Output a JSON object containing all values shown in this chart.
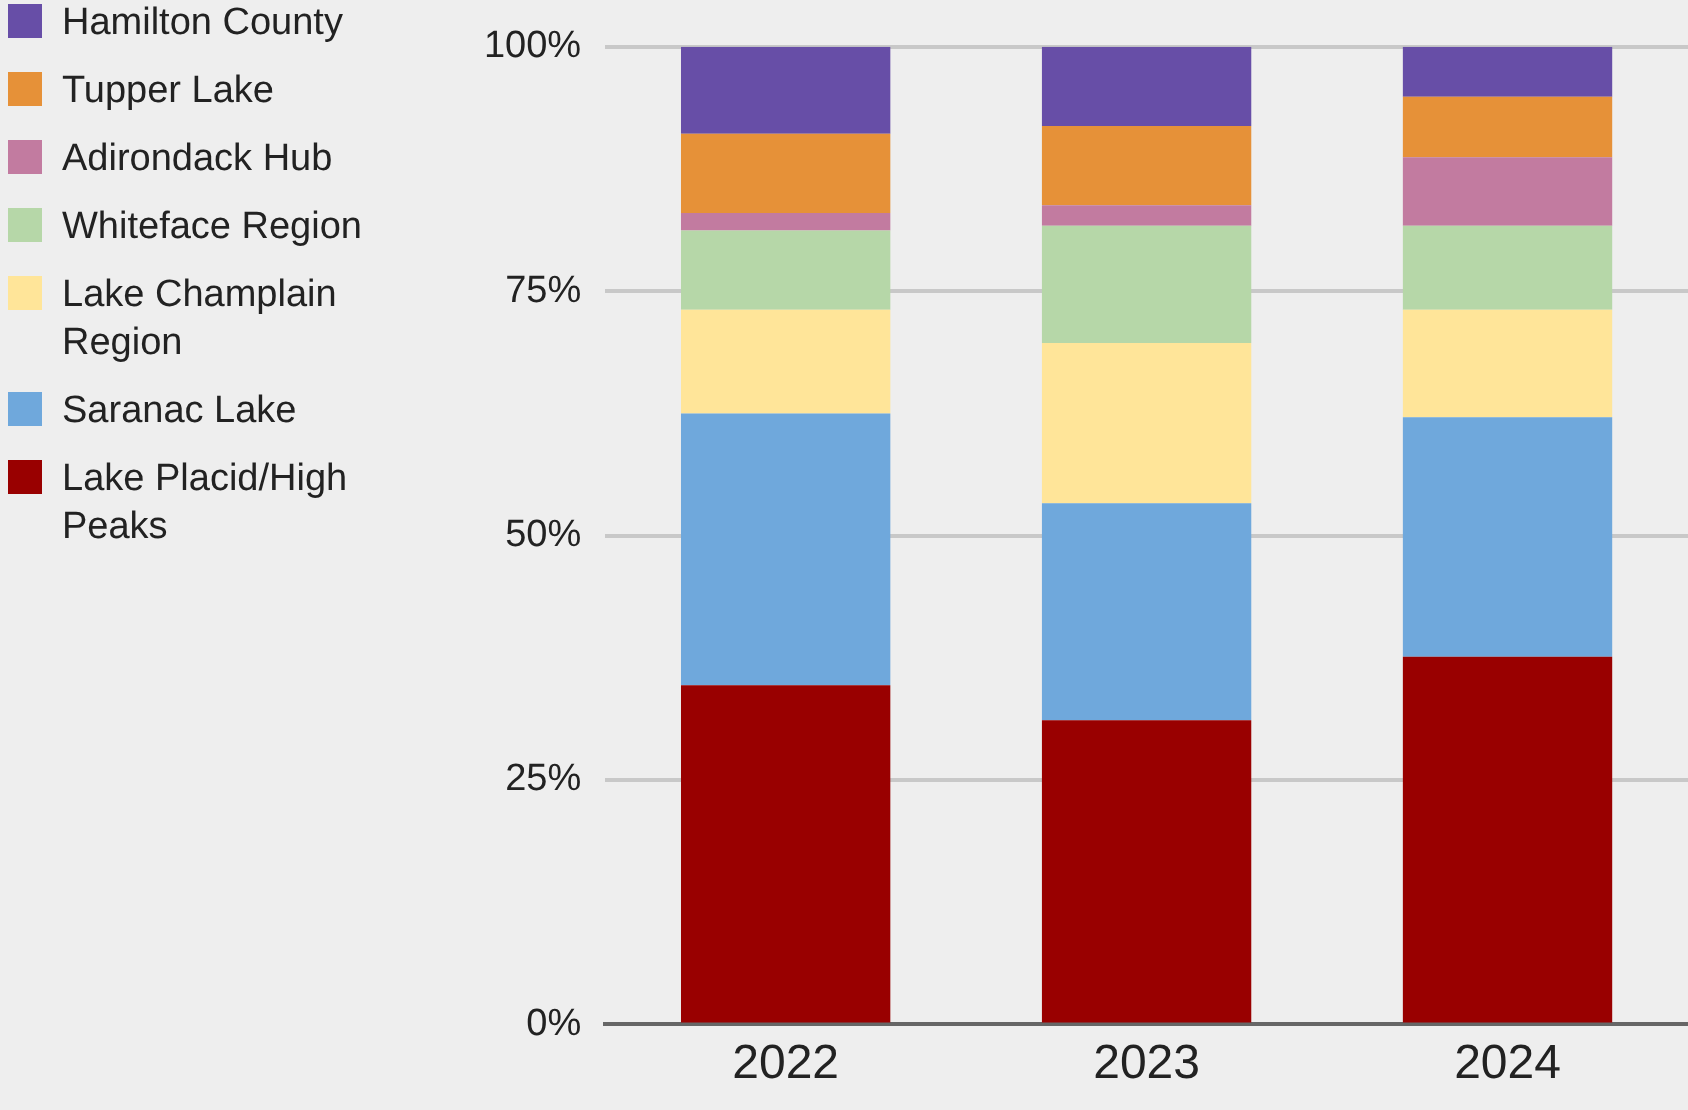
{
  "chart_data": {
    "type": "bar",
    "stacked": true,
    "categories": [
      "2022",
      "2023",
      "2024"
    ],
    "series": [
      {
        "name": "Lake Placid/High Peaks",
        "color": "#990000",
        "values": [
          34.7,
          31.1,
          37.6
        ]
      },
      {
        "name": "Saranac Lake",
        "color": "#6fa8dc",
        "values": [
          27.8,
          22.2,
          24.5
        ]
      },
      {
        "name": "Lake Champlain Region",
        "color": "#ffe599",
        "values": [
          10.6,
          16.4,
          11.0
        ]
      },
      {
        "name": "Whiteface Region",
        "color": "#b6d7a8",
        "values": [
          8.1,
          12.0,
          8.6
        ]
      },
      {
        "name": "Adirondack Hub",
        "color": "#c27ba0",
        "values": [
          1.8,
          2.1,
          7.0
        ]
      },
      {
        "name": "Tupper Lake",
        "color": "#e69138",
        "values": [
          8.1,
          8.1,
          6.2
        ]
      },
      {
        "name": "Hamilton County",
        "color": "#674ea7",
        "values": [
          8.9,
          8.1,
          5.1
        ]
      }
    ],
    "ylim": [
      0,
      100
    ],
    "yticks": [
      {
        "value": 0,
        "label": "0%"
      },
      {
        "value": 25,
        "label": "25%"
      },
      {
        "value": 50,
        "label": "50%"
      },
      {
        "value": 75,
        "label": "75%"
      },
      {
        "value": 100,
        "label": "100%"
      }
    ],
    "grid": "y",
    "legend": "left"
  }
}
